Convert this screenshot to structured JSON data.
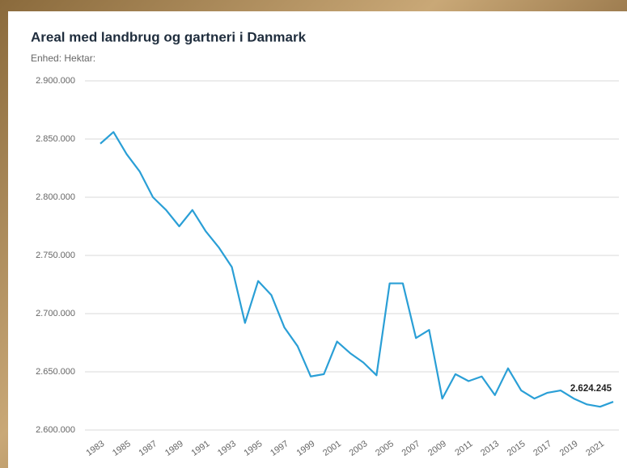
{
  "chart_data": {
    "type": "line",
    "title": "Areal med landbrug og gartneri i Danmark",
    "subtitle": "Enhed: Hektar:",
    "categories": [
      "1983",
      null,
      "1985",
      null,
      "1987",
      null,
      "1989",
      null,
      "1991",
      null,
      "1993",
      null,
      "1995",
      null,
      "1997",
      null,
      "1999",
      null,
      "2001",
      null,
      "2003",
      null,
      "2005",
      null,
      "2007",
      null,
      "2009",
      null,
      "2011",
      null,
      "2013",
      null,
      "2015",
      null,
      "2017",
      null,
      "2019",
      null,
      "2021",
      null
    ],
    "series": [
      {
        "color": "#2a9fd6",
        "values": [
          2846000,
          2856000,
          2837000,
          2822000,
          2800000,
          2789000,
          2775000,
          2789000,
          2771000,
          2757000,
          2740000,
          2692000,
          2728000,
          2716000,
          2688000,
          2672000,
          2646000,
          2648000,
          2676000,
          2666000,
          2658000,
          2647000,
          2726000,
          2726000,
          2679000,
          2686000,
          2627000,
          2648000,
          2642000,
          2646000,
          2630000,
          2653000,
          2634000,
          2627000,
          2632000,
          2634000,
          2627000,
          2622000,
          2620000,
          2624245
        ],
        "value_labels": [
          null,
          null,
          null,
          null,
          null,
          null,
          null,
          null,
          null,
          null,
          null,
          null,
          null,
          null,
          null,
          null,
          null,
          null,
          null,
          null,
          null,
          null,
          null,
          null,
          null,
          null,
          null,
          null,
          null,
          null,
          null,
          null,
          null,
          null,
          null,
          null,
          null,
          null,
          null,
          "2.624.245"
        ]
      }
    ],
    "ylim": [
      2600000,
      2900000
    ],
    "yticks": [
      {
        "value": 2600000,
        "label": "2.600.000"
      },
      {
        "value": 2650000,
        "label": "2.650.000"
      },
      {
        "value": 2700000,
        "label": "2.700.000"
      },
      {
        "value": 2750000,
        "label": "2.750.000"
      },
      {
        "value": 2800000,
        "label": "2.800.000"
      },
      {
        "value": 2850000,
        "label": "2.850.000"
      },
      {
        "value": 2900000,
        "label": "2.900.000"
      }
    ],
    "grid": true
  }
}
